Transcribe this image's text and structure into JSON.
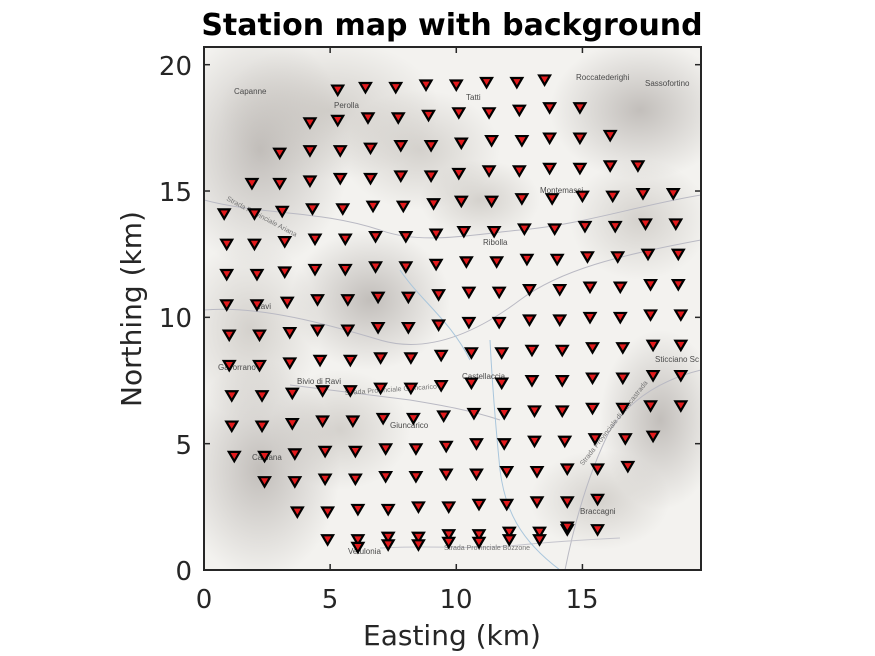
{
  "chart_data": {
    "type": "scatter",
    "title": "Station map with background",
    "xlabel": "Easting (km)",
    "ylabel": "Northing (km)",
    "xlim": [
      0,
      19.7
    ],
    "ylim": [
      0,
      20.7
    ],
    "xticks": [
      "0",
      "5",
      "10",
      "15"
    ],
    "yticks": [
      "0",
      "5",
      "10",
      "15",
      "20"
    ],
    "grid": false,
    "marker": "downward-triangle",
    "marker_color": "#e31a1c",
    "map_labels": [
      "Capanne",
      "Perolla",
      "Tatti",
      "Roccatederighi",
      "Sassofortino",
      "Montemassi",
      "Sassofortino",
      "Ribolla",
      "Castellaccia",
      "Giuncarico",
      "Ravi",
      "Bivio di Ravi",
      "Caldana",
      "Braccagni",
      "Vetulonia",
      "Sticciano Sc",
      "Gavorrano"
    ],
    "road_labels": [
      "Strada Provinciale Ariana",
      "Strada Provinciale Bozzone",
      "Strada Provinciale Giuncarico",
      "Strada Provinciale di Roccastrada"
    ],
    "x": [
      5.3,
      6.4,
      7.6,
      8.8,
      10.0,
      11.2,
      12.4,
      13.5,
      4.2,
      5.3,
      6.5,
      7.7,
      8.9,
      10.1,
      11.3,
      12.5,
      13.7,
      14.9,
      3.0,
      4.2,
      5.4,
      6.6,
      7.8,
      9.0,
      10.2,
      11.4,
      12.6,
      13.7,
      14.9,
      16.1,
      1.9,
      3.0,
      4.2,
      5.4,
      6.6,
      7.8,
      9.0,
      10.1,
      11.3,
      12.5,
      13.7,
      14.9,
      16.1,
      17.2,
      0.8,
      2.0,
      3.1,
      4.3,
      5.5,
      6.7,
      7.9,
      9.1,
      10.2,
      11.4,
      12.6,
      13.8,
      15.0,
      16.2,
      17.4,
      18.6,
      0.9,
      2.0,
      3.2,
      4.4,
      5.6,
      6.8,
      8.0,
      9.2,
      10.3,
      11.5,
      12.7,
      13.9,
      15.1,
      16.3,
      17.5,
      18.7,
      0.9,
      2.1,
      3.2,
      4.4,
      5.6,
      6.8,
      8.0,
      9.2,
      10.4,
      11.6,
      12.8,
      14.0,
      15.2,
      16.4,
      17.6,
      18.8,
      0.9,
      2.1,
      3.3,
      4.5,
      5.7,
      6.9,
      8.1,
      9.3,
      10.5,
      11.7,
      12.9,
      14.1,
      15.3,
      16.5,
      17.7,
      18.8,
      1.0,
      2.2,
      3.4,
      4.5,
      5.7,
      6.9,
      8.1,
      9.3,
      10.5,
      11.7,
      12.9,
      14.1,
      15.3,
      16.5,
      17.7,
      18.9,
      1.0,
      2.2,
      3.4,
      4.6,
      5.8,
      7.0,
      8.2,
      9.4,
      10.6,
      11.8,
      13.0,
      14.2,
      15.4,
      16.6,
      17.8,
      18.9,
      1.1,
      2.3,
      3.5,
      4.7,
      5.8,
      7.0,
      8.2,
      9.4,
      10.6,
      11.8,
      13.0,
      14.2,
      15.4,
      16.6,
      17.8,
      18.9,
      1.1,
      2.3,
      3.5,
      4.7,
      5.9,
      7.1,
      8.3,
      9.5,
      10.7,
      11.9,
      13.1,
      14.2,
      15.4,
      16.6,
      17.7,
      18.9,
      1.2,
      2.4,
      3.6,
      4.8,
      6.0,
      7.2,
      8.4,
      9.6,
      10.8,
      11.9,
      13.1,
      14.3,
      15.5,
      16.7,
      17.8,
      2.4,
      3.6,
      4.8,
      6.0,
      7.2,
      8.4,
      9.6,
      10.8,
      12.0,
      13.2,
      14.4,
      15.6,
      16.8,
      3.7,
      4.9,
      6.1,
      7.3,
      8.5,
      9.7,
      10.9,
      12.0,
      13.2,
      14.4,
      15.6,
      4.9,
      6.1,
      7.3,
      8.5,
      9.7,
      10.9,
      12.1,
      13.3,
      14.4,
      15.6,
      6.1,
      7.3,
      8.5,
      9.7,
      10.9,
      12.1,
      13.3,
      14.4
    ],
    "y": [
      19.0,
      19.1,
      19.1,
      19.2,
      19.2,
      19.3,
      19.3,
      19.4,
      17.7,
      17.8,
      17.9,
      17.9,
      18.0,
      18.1,
      18.1,
      18.2,
      18.3,
      18.3,
      16.5,
      16.6,
      16.6,
      16.7,
      16.8,
      16.8,
      16.9,
      17.0,
      17.0,
      17.1,
      17.1,
      17.2,
      15.3,
      15.3,
      15.4,
      15.5,
      15.5,
      15.6,
      15.6,
      15.7,
      15.8,
      15.8,
      15.9,
      15.9,
      16.0,
      16.0,
      14.1,
      14.1,
      14.2,
      14.3,
      14.3,
      14.4,
      14.4,
      14.5,
      14.6,
      14.6,
      14.7,
      14.7,
      14.8,
      14.8,
      14.9,
      14.9,
      12.9,
      12.9,
      13.0,
      13.1,
      13.1,
      13.2,
      13.2,
      13.3,
      13.4,
      13.4,
      13.5,
      13.5,
      13.6,
      13.6,
      13.7,
      13.7,
      11.7,
      11.7,
      11.8,
      11.9,
      11.9,
      12.0,
      12.0,
      12.1,
      12.2,
      12.2,
      12.3,
      12.3,
      12.4,
      12.4,
      12.5,
      12.5,
      10.5,
      10.5,
      10.6,
      10.7,
      10.7,
      10.8,
      10.8,
      10.9,
      11.0,
      11.0,
      11.1,
      11.1,
      11.2,
      11.2,
      11.3,
      11.3,
      9.3,
      9.3,
      9.4,
      9.5,
      9.5,
      9.6,
      9.6,
      9.7,
      9.8,
      9.8,
      9.9,
      9.9,
      10.0,
      10.0,
      10.1,
      10.1,
      8.1,
      8.1,
      8.2,
      8.3,
      8.3,
      8.4,
      8.4,
      8.5,
      8.6,
      8.6,
      8.7,
      8.7,
      8.8,
      8.8,
      8.9,
      8.9,
      6.9,
      6.9,
      7.0,
      7.1,
      7.1,
      7.2,
      7.2,
      7.3,
      7.4,
      7.4,
      7.5,
      7.5,
      7.6,
      7.6,
      7.7,
      7.7,
      5.7,
      5.7,
      5.8,
      5.9,
      5.9,
      6.0,
      6.0,
      6.1,
      6.2,
      6.2,
      6.3,
      6.3,
      6.4,
      6.4,
      6.5,
      6.5,
      4.5,
      4.5,
      4.6,
      4.7,
      4.7,
      4.8,
      4.8,
      4.9,
      5.0,
      5.0,
      5.1,
      5.1,
      5.2,
      5.2,
      5.3,
      3.5,
      3.5,
      3.6,
      3.6,
      3.7,
      3.7,
      3.8,
      3.8,
      3.9,
      3.9,
      4.0,
      4.0,
      4.1,
      2.3,
      2.3,
      2.4,
      2.4,
      2.5,
      2.5,
      2.6,
      2.6,
      2.7,
      2.7,
      2.8,
      1.2,
      1.2,
      1.3,
      1.3,
      1.4,
      1.4,
      1.5,
      1.5,
      1.6,
      1.6,
      0.9,
      1.0,
      1.0,
      1.1,
      1.1,
      1.2,
      1.2,
      1.7
    ]
  }
}
